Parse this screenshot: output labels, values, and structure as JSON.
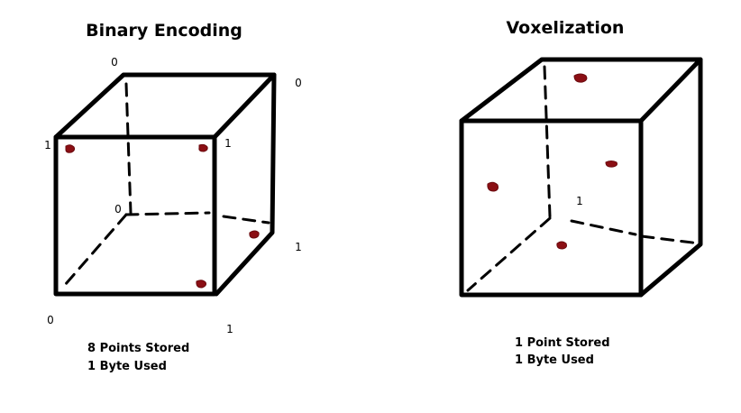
{
  "left_panel": {
    "title": "Binary Encoding",
    "corner_labels": {
      "back_top_left": "0",
      "back_top_right": "0",
      "front_top_left": "1",
      "front_top_right": "1",
      "back_bottom_left": "0",
      "back_bottom_right": "1",
      "front_bottom_left": "0",
      "front_bottom_right": "1"
    },
    "captions": [
      "8 Points Stored",
      "1 Byte Used"
    ]
  },
  "right_panel": {
    "title": "Voxelization",
    "center_label": "1",
    "captions": [
      "1 Point Stored",
      "1 Byte Used"
    ]
  },
  "colors": {
    "points": "#8b0f14",
    "lines": "#000000"
  }
}
